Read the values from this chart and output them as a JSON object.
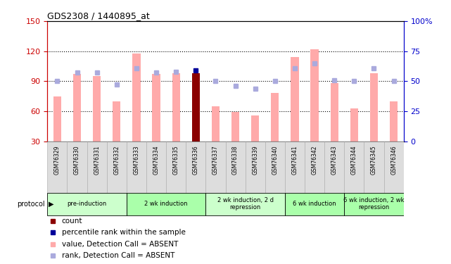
{
  "title": "GDS2308 / 1440895_at",
  "samples": [
    "GSM76329",
    "GSM76330",
    "GSM76331",
    "GSM76332",
    "GSM76333",
    "GSM76334",
    "GSM76335",
    "GSM76336",
    "GSM76337",
    "GSM76338",
    "GSM76339",
    "GSM76340",
    "GSM76341",
    "GSM76342",
    "GSM76343",
    "GSM76344",
    "GSM76345",
    "GSM76346"
  ],
  "pink_bars": [
    75,
    97,
    95,
    70,
    118,
    97,
    98,
    98,
    65,
    59,
    56,
    78,
    114,
    122,
    88,
    63,
    98,
    70
  ],
  "dark_red_bar_index": 7,
  "blue_dot_values_pct": [
    50,
    57,
    57,
    47,
    61,
    57,
    58,
    59,
    50,
    46,
    44,
    50,
    61,
    65,
    51,
    50,
    61,
    50
  ],
  "protocol_groups": [
    {
      "label": "pre-induction",
      "start": 0,
      "end": 3,
      "color": "#ccffcc"
    },
    {
      "label": "2 wk induction",
      "start": 4,
      "end": 7,
      "color": "#aaffaa"
    },
    {
      "label": "2 wk induction, 2 d\nrepression",
      "start": 8,
      "end": 11,
      "color": "#ccffcc"
    },
    {
      "label": "6 wk induction",
      "start": 12,
      "end": 14,
      "color": "#aaffaa"
    },
    {
      "label": "6 wk induction, 2 wk\nrepression",
      "start": 15,
      "end": 17,
      "color": "#aaffaa"
    }
  ],
  "ylim_left": [
    30,
    150
  ],
  "ylim_right": [
    0,
    100
  ],
  "yticks_left": [
    30,
    60,
    90,
    120,
    150
  ],
  "yticks_right": [
    0,
    25,
    50,
    75,
    100
  ],
  "pink_bar_color": "#ffaaaa",
  "dark_red_color": "#8b0000",
  "blue_dot_color": "#aaaadd",
  "dark_blue_dot_color": "#000099",
  "tick_label_color_left": "#cc0000",
  "tick_label_color_right": "#0000cc",
  "bar_width": 0.4,
  "legend_items": [
    {
      "color": "#8b0000",
      "label": "count"
    },
    {
      "color": "#000099",
      "label": "percentile rank within the sample"
    },
    {
      "color": "#ffaaaa",
      "label": "value, Detection Call = ABSENT"
    },
    {
      "color": "#aaaadd",
      "label": "rank, Detection Call = ABSENT"
    }
  ]
}
